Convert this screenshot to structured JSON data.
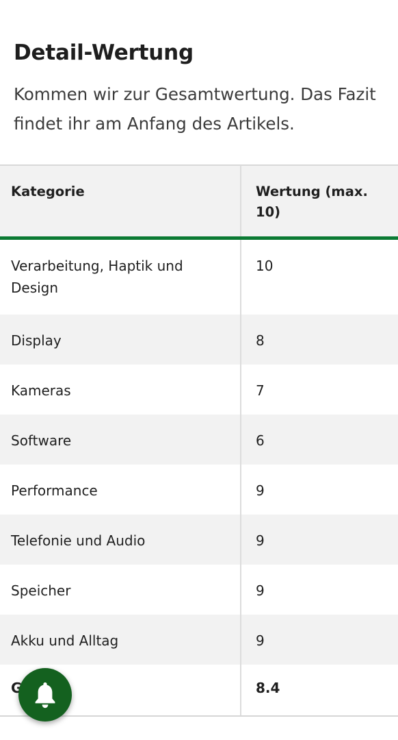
{
  "article": {
    "heading": "Detail-Wertung",
    "intro": "Kommen wir zur Gesamtwertung. Das Fazit findet ihr am Anfang des Artikels."
  },
  "table": {
    "headers": [
      "Kategorie",
      "Wertung (max. 10)"
    ],
    "rows": [
      {
        "category": "Verarbeitung, Haptik und Design",
        "score": "10"
      },
      {
        "category": "Display",
        "score": "8"
      },
      {
        "category": "Kameras",
        "score": "7"
      },
      {
        "category": "Software",
        "score": "6"
      },
      {
        "category": "Performance",
        "score": "9"
      },
      {
        "category": "Telefonie und Audio",
        "score": "9"
      },
      {
        "category": "Speicher",
        "score": "9"
      },
      {
        "category": "Akku und Alltag",
        "score": "9"
      }
    ],
    "total": {
      "category": "G",
      "score": "8.4"
    }
  },
  "notification_button": {
    "icon": "bell-icon",
    "color": "#14611f"
  }
}
